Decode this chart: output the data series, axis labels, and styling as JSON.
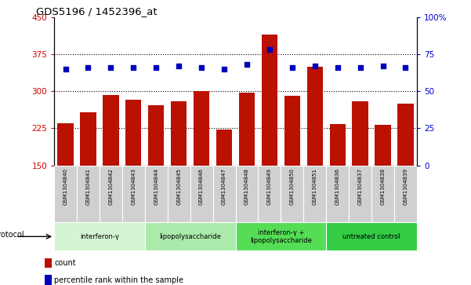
{
  "title": "GDS5196 / 1452396_at",
  "samples": [
    "GSM1304840",
    "GSM1304841",
    "GSM1304842",
    "GSM1304843",
    "GSM1304844",
    "GSM1304845",
    "GSM1304846",
    "GSM1304847",
    "GSM1304848",
    "GSM1304849",
    "GSM1304850",
    "GSM1304851",
    "GSM1304836",
    "GSM1304837",
    "GSM1304838",
    "GSM1304839"
  ],
  "counts": [
    235,
    258,
    293,
    282,
    272,
    280,
    300,
    222,
    297,
    415,
    291,
    350,
    233,
    280,
    232,
    275
  ],
  "percentiles": [
    65,
    66,
    66,
    66,
    66,
    67,
    66,
    65,
    68,
    78,
    66,
    67,
    66,
    66,
    67,
    66
  ],
  "groups": [
    {
      "label": "interferon-γ",
      "start": 0,
      "end": 4,
      "color": "#d4f5d4"
    },
    {
      "label": "lipopolysaccharide",
      "start": 4,
      "end": 8,
      "color": "#aaeaaa"
    },
    {
      "label": "interferon-γ +\nlipopolysaccharide",
      "start": 8,
      "end": 12,
      "color": "#55dd55"
    },
    {
      "label": "untreated control",
      "start": 12,
      "end": 16,
      "color": "#33cc44"
    }
  ],
  "ylim_left": [
    150,
    450
  ],
  "ylim_right": [
    0,
    100
  ],
  "yticks_left": [
    150,
    225,
    300,
    375,
    450
  ],
  "yticks_right": [
    0,
    25,
    50,
    75,
    100
  ],
  "bar_color": "#bb1100",
  "dot_color": "#0000bb",
  "bar_width": 0.7,
  "bg_color": "#ffffff",
  "plot_bg": "#ffffff",
  "tick_label_color_left": "#cc0000",
  "tick_label_color_right": "#0000cc",
  "sample_box_bg": "#d0d0d0",
  "legend_items": [
    {
      "label": "count",
      "color": "#bb1100"
    },
    {
      "label": "percentile rank within the sample",
      "color": "#0000bb"
    }
  ]
}
